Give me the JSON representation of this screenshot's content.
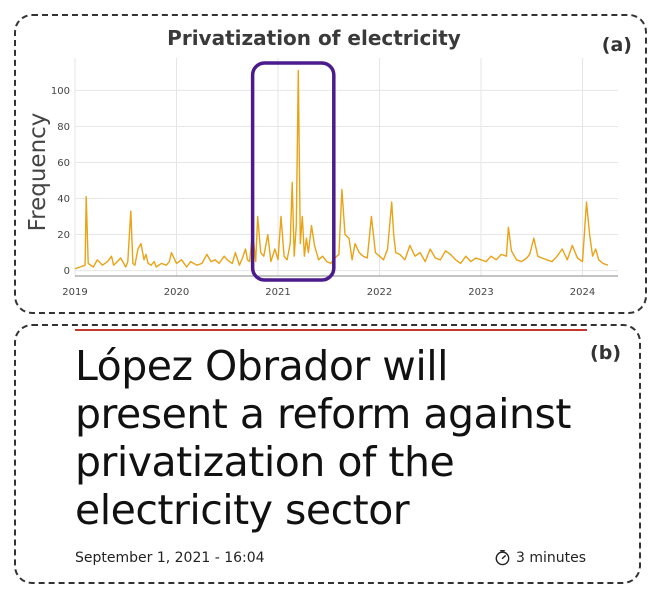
{
  "panel_a": {
    "tag": "(a)"
  },
  "panel_b": {
    "tag": "(b)",
    "headline": "López Obrador will present a reform against privatization of the electricity sector",
    "date": "September 1, 2021 - 16:04",
    "read_time": "3 minutes",
    "rule_color": "#c0392b"
  },
  "chart_data": {
    "type": "line",
    "title": "Privatization of electricity",
    "xlabel": "",
    "ylabel": "Frequency",
    "xlim": [
      2019.0,
      2024.35
    ],
    "ylim": [
      -3,
      118
    ],
    "yticks": [
      0,
      20,
      40,
      60,
      80,
      100
    ],
    "xticks": [
      {
        "value": 2019,
        "label": "2019"
      },
      {
        "value": 2020,
        "label": "2020"
      },
      {
        "value": 2021,
        "label": "2021"
      },
      {
        "value": 2022,
        "label": "2022"
      },
      {
        "value": 2023,
        "label": "2023"
      },
      {
        "value": 2024,
        "label": "2024"
      }
    ],
    "grid": true,
    "line_color": "#e8a317",
    "highlight": {
      "x_range": [
        2020.75,
        2021.55
      ],
      "color": "#4b1a8c"
    },
    "series": [
      {
        "x": [
          2019.0,
          2019.05,
          2019.1,
          2019.11,
          2019.13,
          2019.18,
          2019.22,
          2019.27,
          2019.32,
          2019.36,
          2019.38,
          2019.4,
          2019.45,
          2019.5,
          2019.52,
          2019.55,
          2019.57,
          2019.59,
          2019.62,
          2019.65,
          2019.68,
          2019.7,
          2019.72,
          2019.75,
          2019.78,
          2019.8,
          2019.85,
          2019.9,
          2019.93,
          2019.95,
          2020.0,
          2020.05,
          2020.1,
          2020.14,
          2020.2,
          2020.25,
          2020.3,
          2020.34,
          2020.38,
          2020.42,
          2020.47,
          2020.5,
          2020.55,
          2020.58,
          2020.62,
          2020.65,
          2020.68,
          2020.7,
          2020.72,
          2020.75,
          2020.78,
          2020.8,
          2020.83,
          2020.86,
          2020.9,
          2020.93,
          2020.97,
          2021.0,
          2021.03,
          2021.06,
          2021.09,
          2021.12,
          2021.14,
          2021.16,
          2021.18,
          2021.2,
          2021.22,
          2021.24,
          2021.26,
          2021.28,
          2021.3,
          2021.33,
          2021.36,
          2021.4,
          2021.44,
          2021.48,
          2021.52,
          2021.56,
          2021.6,
          2021.63,
          2021.66,
          2021.7,
          2021.73,
          2021.76,
          2021.8,
          2021.84,
          2021.88,
          2021.92,
          2021.96,
          2022.0,
          2022.04,
          2022.08,
          2022.12,
          2022.14,
          2022.16,
          2022.2,
          2022.25,
          2022.3,
          2022.35,
          2022.4,
          2022.45,
          2022.5,
          2022.55,
          2022.6,
          2022.65,
          2022.7,
          2022.75,
          2022.8,
          2022.85,
          2022.9,
          2022.95,
          2023.0,
          2023.05,
          2023.1,
          2023.15,
          2023.2,
          2023.25,
          2023.27,
          2023.3,
          2023.35,
          2023.4,
          2023.45,
          2023.48,
          2023.52,
          2023.56,
          2023.6,
          2023.65,
          2023.7,
          2023.75,
          2023.8,
          2023.85,
          2023.9,
          2023.95,
          2024.0,
          2024.04,
          2024.07,
          2024.1,
          2024.13,
          2024.16,
          2024.2,
          2024.25
        ],
        "y": [
          1,
          2,
          3,
          41,
          4,
          2,
          6,
          3,
          5,
          8,
          3,
          4,
          7,
          2,
          5,
          33,
          4,
          3,
          12,
          15,
          6,
          9,
          4,
          3,
          5,
          2,
          4,
          3,
          5,
          10,
          4,
          6,
          2,
          5,
          3,
          4,
          9,
          5,
          6,
          4,
          8,
          6,
          4,
          10,
          3,
          7,
          12,
          6,
          5,
          22,
          5,
          30,
          10,
          8,
          20,
          5,
          12,
          6,
          30,
          8,
          6,
          15,
          49,
          8,
          25,
          111,
          15,
          30,
          8,
          18,
          10,
          25,
          14,
          6,
          8,
          5,
          4,
          7,
          9,
          45,
          20,
          18,
          6,
          15,
          10,
          8,
          7,
          30,
          10,
          8,
          6,
          12,
          38,
          20,
          10,
          9,
          6,
          14,
          8,
          10,
          5,
          12,
          7,
          6,
          11,
          9,
          6,
          4,
          8,
          5,
          7,
          6,
          5,
          8,
          6,
          9,
          8,
          24,
          11,
          6,
          5,
          7,
          9,
          18,
          8,
          7,
          6,
          5,
          8,
          12,
          6,
          14,
          7,
          5,
          38,
          20,
          8,
          12,
          6,
          4,
          3
        ]
      }
    ]
  }
}
